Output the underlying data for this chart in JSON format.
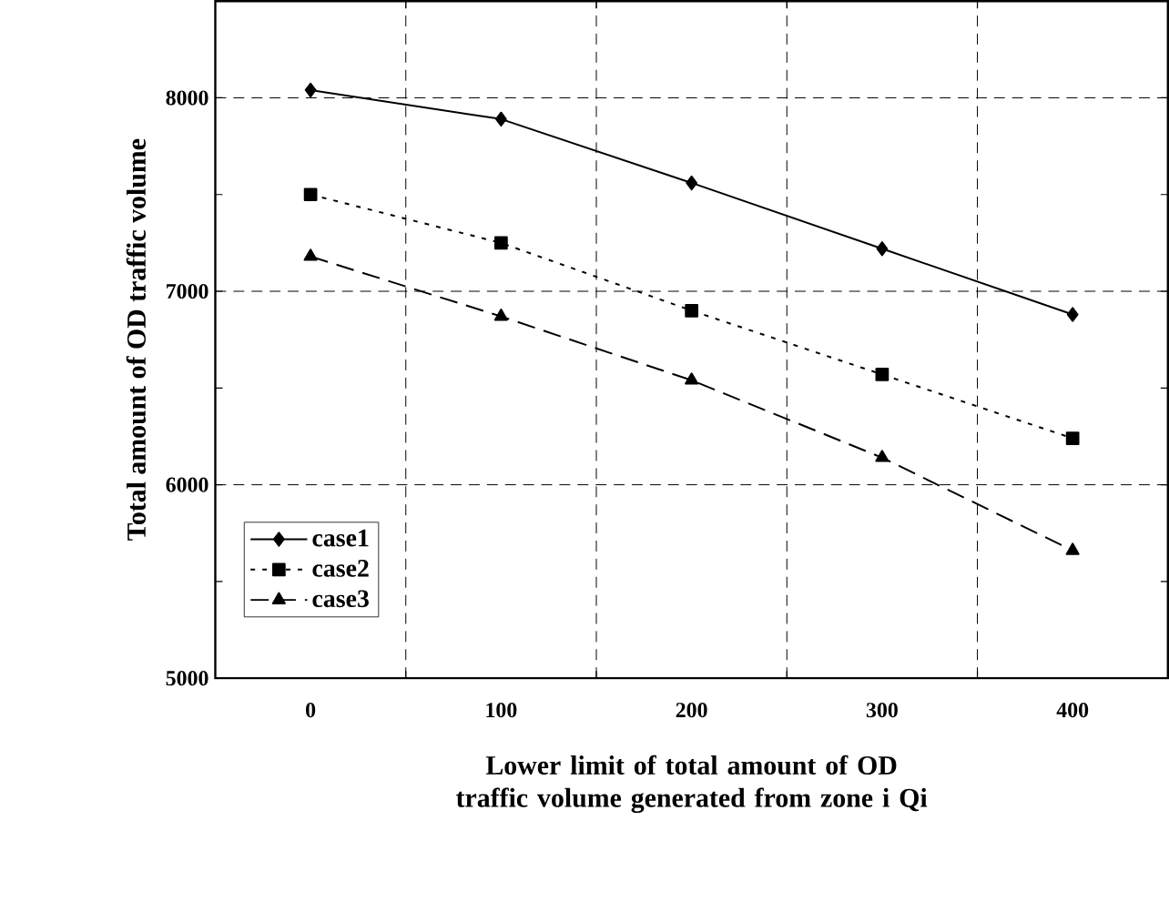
{
  "chart_data": {
    "type": "line",
    "xlabel": "Lower limit of total amount of OD traffic volume generated from zone i Qi",
    "ylabel": "Total amount of OD traffic volume",
    "categories": [
      "0",
      "100",
      "200",
      "300",
      "400"
    ],
    "series": [
      {
        "name": "case1",
        "color": "#000000",
        "marker": "diamond",
        "line_style": "solid",
        "values": [
          8040,
          7890,
          7560,
          7220,
          6880
        ]
      },
      {
        "name": "case2",
        "color": "#000000",
        "marker": "square",
        "line_style": "dotted",
        "values": [
          7500,
          7250,
          6900,
          6570,
          6240
        ]
      },
      {
        "name": "case3",
        "color": "#000000",
        "marker": "triangle",
        "line_style": "dashed",
        "values": [
          7180,
          6870,
          6540,
          6140,
          5660
        ]
      }
    ],
    "ylim": [
      5000,
      8500
    ],
    "yticks": [
      5000,
      {
        "value": 5500,
        "label": null
      },
      6000,
      {
        "value": 6500,
        "label": null
      },
      7000,
      {
        "value": 7500,
        "label": null
      },
      8000
    ],
    "grid": true,
    "legend": "bottom left"
  }
}
